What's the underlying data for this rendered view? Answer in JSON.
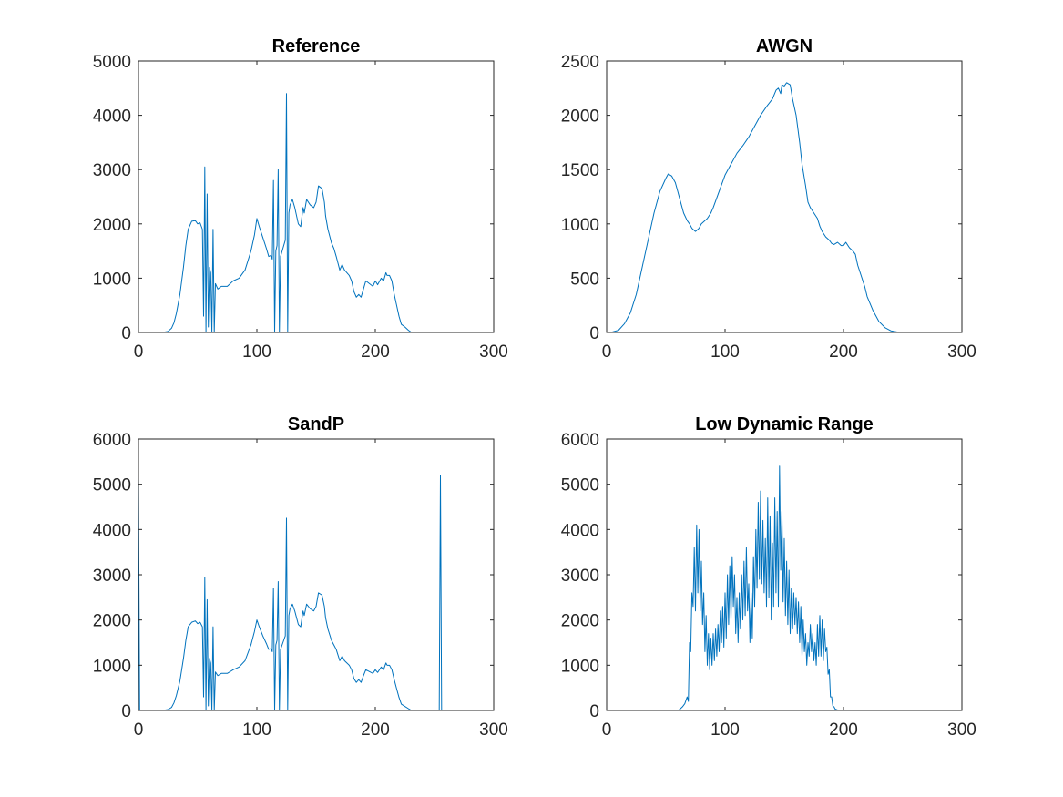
{
  "colors": {
    "series": "#0072bd",
    "axes": "#262626",
    "background": "#ffffff"
  },
  "chart_data": [
    {
      "type": "line",
      "title": "Reference",
      "xlabel": "",
      "ylabel": "",
      "xlim": [
        0,
        300
      ],
      "ylim": [
        0,
        5000
      ],
      "xticks": [
        0,
        100,
        200,
        300
      ],
      "yticks": [
        0,
        1000,
        2000,
        3000,
        4000,
        5000
      ],
      "grid": false,
      "series": [
        {
          "x": [
            0,
            20,
            25,
            28,
            30,
            32,
            35,
            38,
            40,
            42,
            45,
            48,
            50,
            52,
            54,
            55,
            56,
            57,
            58,
            59,
            60,
            61,
            62,
            63,
            64,
            65,
            67,
            70,
            75,
            80,
            85,
            90,
            95,
            98,
            100,
            102,
            105,
            108,
            110,
            112,
            113,
            114,
            115,
            116,
            117,
            118,
            119,
            120,
            122,
            124,
            125,
            126,
            127,
            128,
            130,
            132,
            135,
            137,
            139,
            140,
            142,
            145,
            148,
            150,
            152,
            155,
            157,
            158,
            160,
            163,
            165,
            167,
            170,
            172,
            174,
            176,
            178,
            180,
            182,
            184,
            186,
            188,
            190,
            192,
            195,
            198,
            200,
            202,
            205,
            207,
            209,
            210,
            212,
            214,
            216,
            218,
            220,
            222,
            225,
            228,
            230,
            235,
            240,
            255
          ],
          "y": [
            0,
            0,
            20,
            80,
            180,
            350,
            700,
            1200,
            1600,
            1900,
            2050,
            2060,
            2000,
            2020,
            1900,
            300,
            3050,
            0,
            2550,
            100,
            1200,
            1100,
            0,
            1900,
            0,
            900,
            800,
            850,
            850,
            950,
            1000,
            1150,
            1500,
            1800,
            2100,
            1950,
            1750,
            1550,
            1400,
            1420,
            1350,
            2800,
            0,
            1500,
            1600,
            3000,
            0,
            1400,
            1550,
            1700,
            4400,
            0,
            2200,
            2350,
            2450,
            2300,
            2000,
            1950,
            2300,
            2200,
            2450,
            2350,
            2300,
            2400,
            2700,
            2650,
            2400,
            2150,
            1900,
            1650,
            1550,
            1400,
            1150,
            1250,
            1150,
            1100,
            1050,
            950,
            750,
            650,
            700,
            650,
            800,
            950,
            900,
            850,
            950,
            880,
            1000,
            950,
            1100,
            1050,
            1050,
            950,
            700,
            500,
            300,
            150,
            100,
            40,
            10,
            0,
            0,
            0
          ]
        }
      ]
    },
    {
      "type": "line",
      "title": "AWGN",
      "xlabel": "",
      "ylabel": "",
      "xlim": [
        0,
        300
      ],
      "ylim": [
        0,
        2500
      ],
      "xticks": [
        0,
        100,
        200,
        300
      ],
      "yticks": [
        0,
        500,
        1000,
        1500,
        2000,
        2500
      ],
      "grid": false,
      "series": [
        {
          "x": [
            0,
            5,
            10,
            15,
            20,
            25,
            30,
            35,
            40,
            45,
            50,
            52,
            55,
            58,
            60,
            62,
            65,
            68,
            70,
            72,
            75,
            78,
            80,
            83,
            85,
            88,
            90,
            95,
            100,
            105,
            110,
            115,
            120,
            125,
            130,
            135,
            140,
            143,
            145,
            147,
            148,
            150,
            152,
            155,
            157,
            160,
            163,
            165,
            168,
            170,
            172,
            175,
            178,
            180,
            182,
            185,
            188,
            190,
            192,
            195,
            198,
            200,
            202,
            205,
            208,
            210,
            212,
            215,
            218,
            220,
            225,
            230,
            235,
            240,
            245,
            250,
            255
          ],
          "y": [
            0,
            5,
            20,
            80,
            180,
            350,
            600,
            850,
            1100,
            1300,
            1420,
            1460,
            1440,
            1380,
            1300,
            1220,
            1100,
            1030,
            1000,
            960,
            930,
            960,
            1000,
            1030,
            1050,
            1100,
            1150,
            1300,
            1450,
            1550,
            1650,
            1720,
            1800,
            1900,
            2000,
            2080,
            2150,
            2230,
            2250,
            2200,
            2280,
            2270,
            2300,
            2280,
            2150,
            2000,
            1750,
            1550,
            1350,
            1200,
            1150,
            1100,
            1050,
            980,
            930,
            880,
            850,
            820,
            810,
            830,
            800,
            800,
            830,
            780,
            750,
            720,
            620,
            520,
            420,
            330,
            200,
            100,
            45,
            15,
            5,
            0,
            0
          ]
        }
      ]
    },
    {
      "type": "line",
      "title": "SandP",
      "xlabel": "",
      "ylabel": "",
      "xlim": [
        0,
        300
      ],
      "ylim": [
        0,
        6000
      ],
      "xticks": [
        0,
        100,
        200,
        300
      ],
      "yticks": [
        0,
        1000,
        2000,
        3000,
        4000,
        5000,
        6000
      ],
      "grid": false,
      "series": [
        {
          "x": [
            0,
            1,
            2,
            20,
            25,
            28,
            30,
            32,
            35,
            38,
            40,
            42,
            45,
            48,
            50,
            52,
            54,
            55,
            56,
            57,
            58,
            59,
            60,
            61,
            62,
            63,
            64,
            65,
            67,
            70,
            75,
            80,
            85,
            90,
            95,
            98,
            100,
            102,
            105,
            108,
            110,
            112,
            113,
            114,
            115,
            116,
            117,
            118,
            119,
            120,
            122,
            124,
            125,
            126,
            127,
            128,
            130,
            132,
            135,
            137,
            139,
            140,
            142,
            145,
            148,
            150,
            152,
            155,
            157,
            158,
            160,
            163,
            165,
            167,
            170,
            172,
            174,
            176,
            178,
            180,
            182,
            184,
            186,
            188,
            190,
            192,
            195,
            198,
            200,
            202,
            205,
            207,
            209,
            210,
            212,
            214,
            216,
            218,
            220,
            222,
            225,
            228,
            230,
            235,
            240,
            254,
            255,
            256
          ],
          "y": [
            5150,
            0,
            0,
            0,
            20,
            70,
            170,
            330,
            650,
            1150,
            1550,
            1850,
            1950,
            1980,
            1920,
            1950,
            1850,
            300,
            2950,
            0,
            2450,
            100,
            1150,
            1050,
            0,
            1850,
            0,
            850,
            770,
            820,
            820,
            900,
            960,
            1100,
            1450,
            1750,
            2000,
            1850,
            1650,
            1480,
            1350,
            1370,
            1300,
            2700,
            0,
            1450,
            1550,
            2850,
            0,
            1350,
            1500,
            1650,
            4250,
            0,
            2100,
            2250,
            2350,
            2200,
            1900,
            1850,
            2200,
            2100,
            2350,
            2250,
            2200,
            2300,
            2600,
            2550,
            2300,
            2050,
            1800,
            1550,
            1450,
            1350,
            1100,
            1200,
            1100,
            1050,
            1000,
            900,
            700,
            620,
            680,
            620,
            770,
            900,
            860,
            820,
            900,
            840,
            960,
            900,
            1050,
            1000,
            1000,
            900,
            680,
            480,
            290,
            140,
            90,
            40,
            10,
            0,
            0,
            0,
            5200,
            0
          ]
        }
      ]
    },
    {
      "type": "line",
      "title": "Low Dynamic Range",
      "xlabel": "",
      "ylabel": "",
      "xlim": [
        0,
        300
      ],
      "ylim": [
        0,
        6000
      ],
      "xticks": [
        0,
        100,
        200,
        300
      ],
      "yticks": [
        0,
        1000,
        2000,
        3000,
        4000,
        5000,
        6000
      ],
      "grid": false,
      "series": [
        {
          "x": [
            0,
            60,
            62,
            64,
            66,
            68,
            69,
            70,
            71,
            72,
            73,
            74,
            75,
            76,
            77,
            78,
            79,
            80,
            81,
            82,
            83,
            84,
            85,
            86,
            87,
            88,
            89,
            90,
            91,
            92,
            93,
            94,
            95,
            96,
            97,
            98,
            99,
            100,
            101,
            102,
            103,
            104,
            105,
            106,
            107,
            108,
            109,
            110,
            111,
            112,
            113,
            114,
            115,
            116,
            117,
            118,
            119,
            120,
            121,
            122,
            123,
            124,
            125,
            126,
            127,
            128,
            129,
            130,
            131,
            132,
            133,
            134,
            135,
            136,
            137,
            138,
            139,
            140,
            141,
            142,
            143,
            144,
            145,
            146,
            147,
            148,
            149,
            150,
            151,
            152,
            153,
            154,
            155,
            156,
            157,
            158,
            159,
            160,
            161,
            162,
            163,
            164,
            165,
            166,
            167,
            168,
            169,
            170,
            171,
            172,
            173,
            174,
            175,
            176,
            177,
            178,
            179,
            180,
            181,
            182,
            183,
            184,
            185,
            186,
            187,
            188,
            189,
            190,
            191,
            192,
            193,
            195,
            200,
            210,
            255
          ],
          "y": [
            0,
            0,
            30,
            80,
            150,
            300,
            200,
            1500,
            1300,
            2600,
            2300,
            3600,
            2200,
            4100,
            2600,
            4000,
            2200,
            3300,
            1900,
            2600,
            1300,
            2100,
            1000,
            1700,
            900,
            1600,
            1000,
            1700,
            1100,
            1800,
            1200,
            1900,
            1300,
            2200,
            1500,
            2300,
            1400,
            2600,
            1600,
            3000,
            1900,
            3200,
            2000,
            3400,
            2300,
            3000,
            1700,
            2500,
            1500,
            2600,
            1800,
            3000,
            2000,
            3300,
            2100,
            3600,
            2200,
            2800,
            1500,
            2600,
            1600,
            3400,
            2300,
            4000,
            2700,
            4600,
            2900,
            4850,
            2800,
            4200,
            2600,
            3800,
            2300,
            4700,
            2500,
            4300,
            2000,
            3700,
            2300,
            4700,
            2600,
            4400,
            2300,
            5400,
            3100,
            4400,
            2400,
            3800,
            2100,
            3300,
            1900,
            3100,
            1700,
            2700,
            1800,
            2600,
            1900,
            2500,
            1700,
            2400,
            1500,
            2300,
            1200,
            2000,
            1300,
            1700,
            1000,
            1500,
            1200,
            1900,
            1300,
            1700,
            1100,
            1500,
            1000,
            1900,
            1200,
            2100,
            1200,
            2000,
            1100,
            1800,
            1300,
            1400,
            800,
            900,
            300,
            300,
            100,
            80,
            30,
            10,
            0,
            0,
            0
          ]
        }
      ]
    }
  ]
}
